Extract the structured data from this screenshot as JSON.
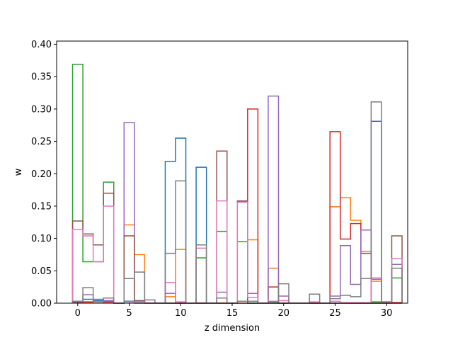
{
  "chart_data": {
    "type": "step",
    "title": "",
    "xlabel": "z dimension",
    "ylabel": "w",
    "xlim": [
      -2.05,
      32.05
    ],
    "ylim": [
      0,
      0.405
    ],
    "xticks": [
      0,
      5,
      10,
      15,
      20,
      25,
      30
    ],
    "yticks": [
      0.0,
      0.05,
      0.1,
      0.15,
      0.2,
      0.25,
      0.3,
      0.35,
      0.4
    ],
    "ytick_labels": [
      "0.00",
      "0.05",
      "0.10",
      "0.15",
      "0.20",
      "0.25",
      "0.30",
      "0.35",
      "0.40"
    ],
    "series": [
      {
        "color": "#1f77b4",
        "values": [
          0.002,
          0.006,
          0.004,
          0.003,
          0,
          0.003,
          0.002,
          0,
          0,
          0.219,
          0.255,
          0,
          0.21,
          0,
          0,
          0,
          0,
          0,
          0,
          0,
          0,
          0,
          0,
          0,
          0,
          0,
          0,
          0,
          0,
          0.281,
          0,
          0
        ]
      },
      {
        "color": "#ff7f0e",
        "values": [
          0.001,
          0.001,
          0.002,
          0.004,
          0,
          0.121,
          0.075,
          0,
          0,
          0.01,
          0.083,
          0,
          0,
          0,
          0,
          0,
          0,
          0.098,
          0,
          0.054,
          0,
          0,
          0,
          0,
          0,
          0.149,
          0.163,
          0.128,
          0.08,
          0.034,
          0,
          0
        ]
      },
      {
        "color": "#2ca02c",
        "values": [
          0.369,
          0.064,
          0.064,
          0.187,
          0,
          0.002,
          0,
          0,
          0,
          0,
          0,
          0,
          0.07,
          0,
          0.111,
          0,
          0.095,
          0,
          0,
          0,
          0,
          0,
          0,
          0,
          0,
          0,
          0,
          0,
          0,
          0.002,
          0,
          0.039
        ]
      },
      {
        "color": "#d62728",
        "values": [
          0.001,
          0.002,
          0.002,
          0.001,
          0,
          0.002,
          0.003,
          0,
          0,
          0,
          0,
          0,
          0,
          0,
          0,
          0,
          0.157,
          0.3,
          0,
          0.025,
          0,
          0,
          0,
          0,
          0,
          0.265,
          0.099,
          0.123,
          0.077,
          0,
          0.002,
          0.001
        ]
      },
      {
        "color": "#9467bd",
        "values": [
          0.002,
          0.013,
          0.006,
          0.004,
          0,
          0.279,
          0.003,
          0,
          0,
          0.015,
          0,
          0,
          0,
          0,
          0.017,
          0,
          0.157,
          0.015,
          0,
          0.32,
          0.011,
          0,
          0,
          0,
          0,
          0.011,
          0.089,
          0.029,
          0.113,
          0.037,
          0,
          0.06
        ]
      },
      {
        "color": "#8c564b",
        "values": [
          0.127,
          0.107,
          0.09,
          0.17,
          0,
          0.104,
          0.004,
          0,
          0,
          0,
          0,
          0,
          0,
          0,
          0.235,
          0,
          0.158,
          0,
          0,
          0.003,
          0,
          0,
          0,
          0,
          0,
          0,
          0,
          0,
          0,
          0,
          0,
          0.104
        ]
      },
      {
        "color": "#e377c2",
        "values": [
          0.114,
          0.104,
          0.064,
          0.15,
          0,
          0.002,
          0.002,
          0,
          0,
          0.032,
          0.002,
          0,
          0.085,
          0,
          0.158,
          0,
          0.156,
          0.009,
          0,
          0.003,
          0.004,
          0,
          0,
          0.002,
          0,
          0.003,
          0.001,
          0.001,
          0.001,
          0.039,
          0,
          0.069
        ]
      },
      {
        "color": "#7f7f7f",
        "values": [
          0.003,
          0.024,
          0.002,
          0.008,
          0,
          0.038,
          0.048,
          0.005,
          0,
          0.077,
          0.189,
          0,
          0.09,
          0,
          0.008,
          0,
          0.003,
          0.003,
          0,
          0.002,
          0.03,
          0,
          0,
          0.014,
          0,
          0.007,
          0.012,
          0.01,
          0.038,
          0.311,
          0.002,
          0.054
        ]
      }
    ]
  }
}
